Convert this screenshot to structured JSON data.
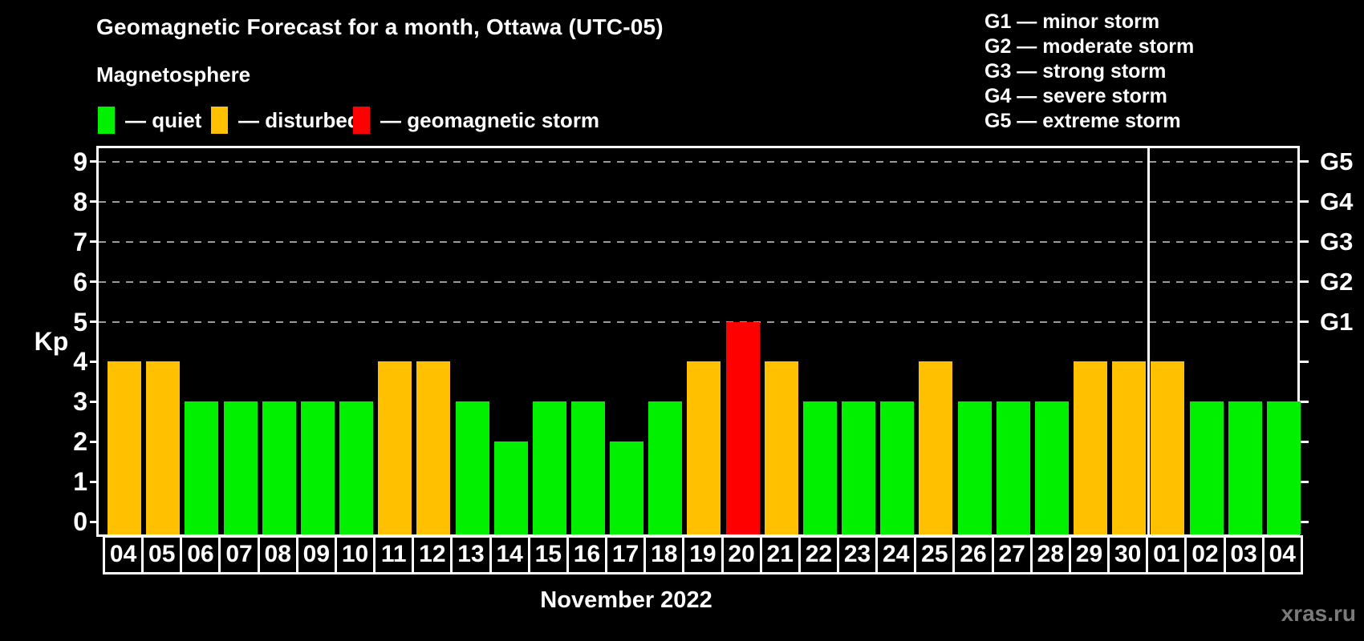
{
  "header": {
    "title": "Geomagnetic Forecast for a month, Ottawa (UTC-05)",
    "subtitle": "Magnetosphere"
  },
  "legend": {
    "items": [
      {
        "status": "quiet",
        "label": "— quiet",
        "color": "#00f000"
      },
      {
        "status": "disturbed",
        "label": "— disturbed",
        "color": "#ffc000"
      },
      {
        "status": "storm",
        "label": "— geomagnetic storm",
        "color": "#ff0000"
      }
    ]
  },
  "storm_scale": [
    "G1 — minor storm",
    "G2 — moderate storm",
    "G3 — strong storm",
    "G4 — severe storm",
    "G5 — extreme storm"
  ],
  "chart_data": {
    "type": "bar",
    "title": "Geomagnetic Forecast for a month, Ottawa (UTC-05)",
    "xlabel": "November 2022",
    "ylabel": "Kp",
    "ylim": [
      0,
      9
    ],
    "yticks": [
      0,
      1,
      2,
      3,
      4,
      5,
      6,
      7,
      8,
      9
    ],
    "gridline_values": [
      5,
      6,
      7,
      8,
      9
    ],
    "grid": "dashed horizontal gridlines only at Kp 5-9",
    "legend_position": "top-left",
    "right_axis": [
      {
        "value": 5,
        "label": "G1"
      },
      {
        "value": 6,
        "label": "G2"
      },
      {
        "value": 7,
        "label": "G3"
      },
      {
        "value": 8,
        "label": "G4"
      },
      {
        "value": 9,
        "label": "G5"
      }
    ],
    "categories": [
      "04",
      "05",
      "06",
      "07",
      "08",
      "09",
      "10",
      "11",
      "12",
      "13",
      "14",
      "15",
      "16",
      "17",
      "18",
      "19",
      "20",
      "21",
      "22",
      "23",
      "24",
      "25",
      "26",
      "27",
      "28",
      "29",
      "30",
      "01",
      "02",
      "03",
      "04"
    ],
    "values": [
      4,
      4,
      3,
      3,
      3,
      3,
      3,
      4,
      4,
      3,
      2,
      3,
      3,
      2,
      3,
      4,
      5,
      4,
      3,
      3,
      3,
      4,
      3,
      3,
      3,
      4,
      4,
      4,
      3,
      3,
      3
    ],
    "statuses": [
      "disturbed",
      "disturbed",
      "quiet",
      "quiet",
      "quiet",
      "quiet",
      "quiet",
      "disturbed",
      "disturbed",
      "quiet",
      "quiet",
      "quiet",
      "quiet",
      "quiet",
      "quiet",
      "disturbed",
      "storm",
      "disturbed",
      "quiet",
      "quiet",
      "quiet",
      "disturbed",
      "quiet",
      "quiet",
      "quiet",
      "disturbed",
      "disturbed",
      "disturbed",
      "quiet",
      "quiet",
      "quiet"
    ],
    "month_boundary_index": 27
  },
  "watermark": "xras.ru",
  "colors": {
    "background": "#000000",
    "text": "#ffffff",
    "grid": "#9b9b9b",
    "axis": "#ffffff",
    "watermark": "#7a7a7a"
  }
}
